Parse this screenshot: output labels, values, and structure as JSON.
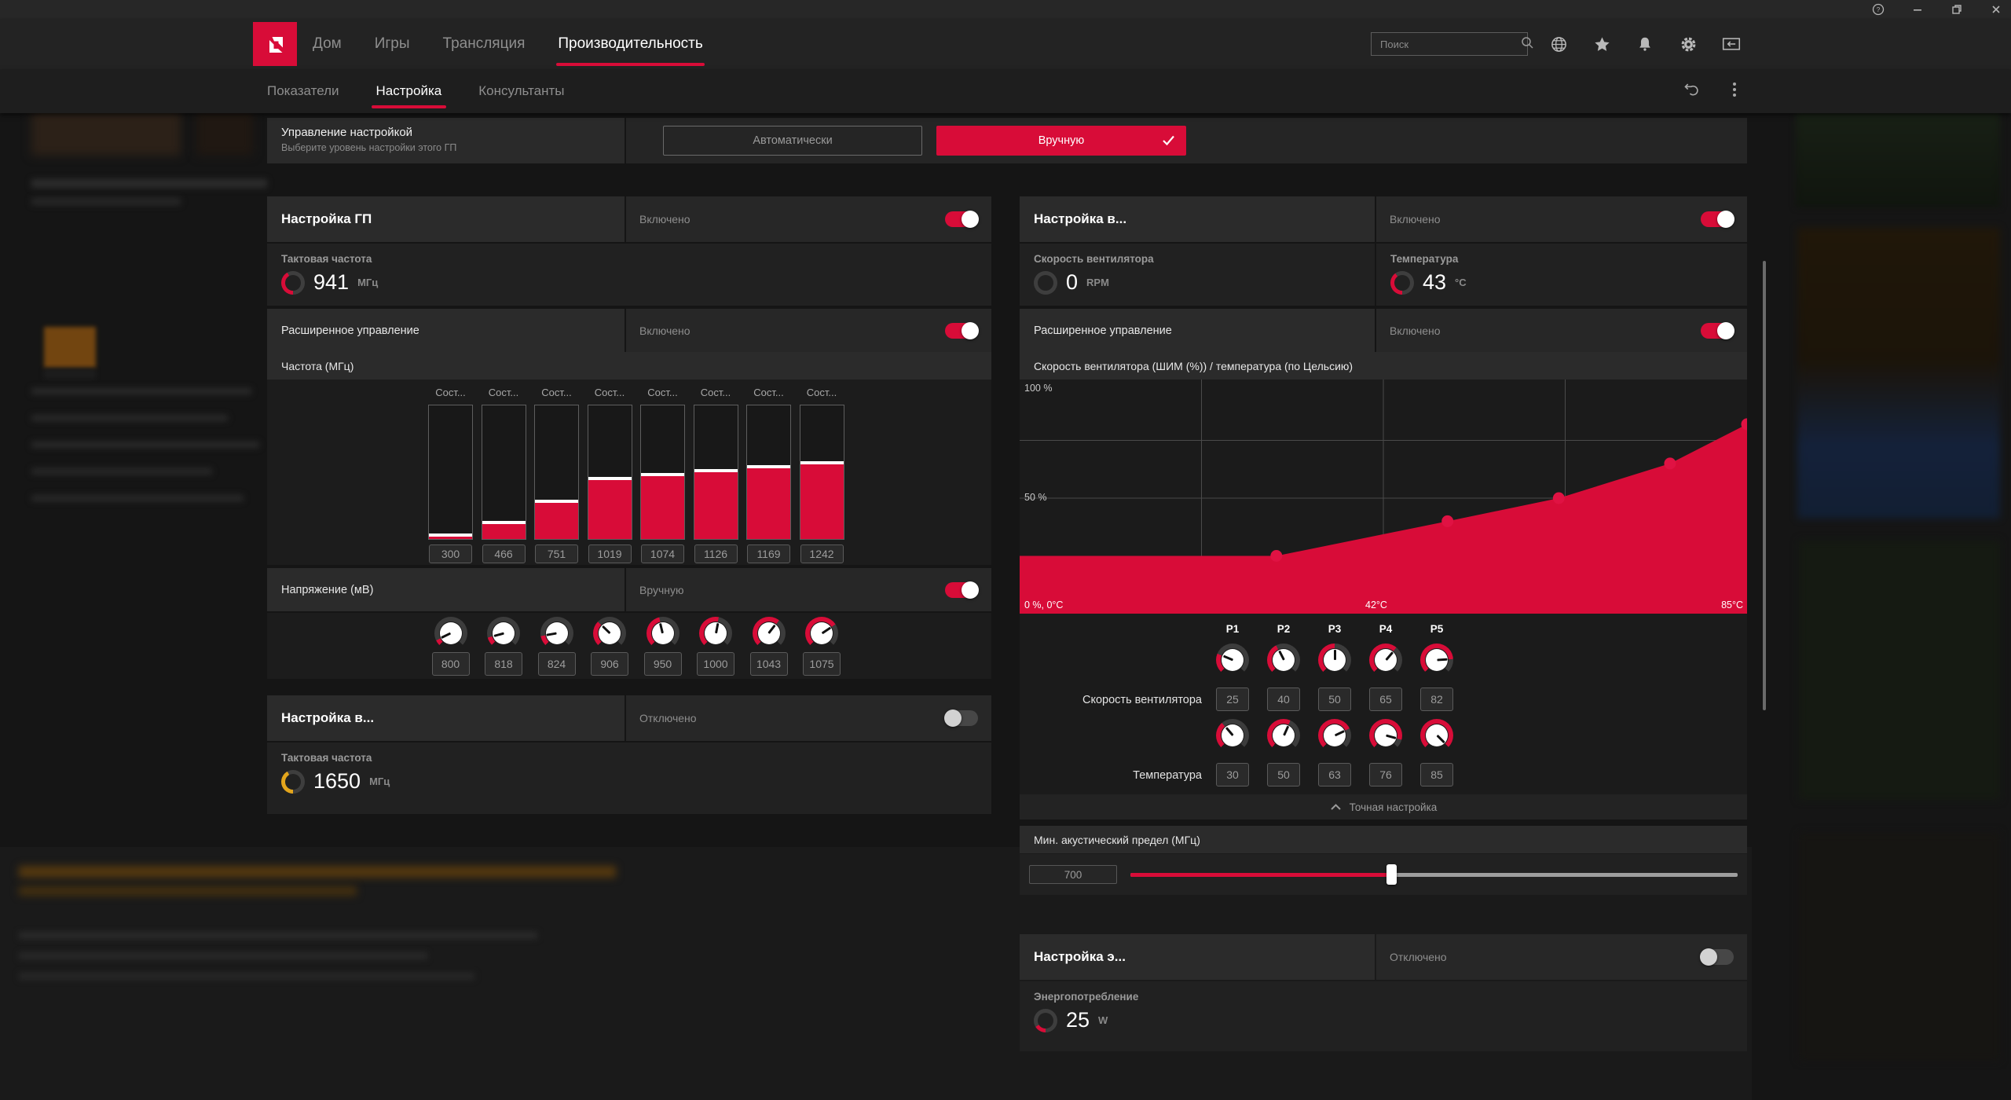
{
  "accent": "#d80c38",
  "window": {
    "icons": [
      "help-icon",
      "minimize-icon",
      "restore-icon",
      "close-icon"
    ]
  },
  "navbar": {
    "tabs": [
      {
        "label": "Дом",
        "active": false
      },
      {
        "label": "Игры",
        "active": false
      },
      {
        "label": "Трансляция",
        "active": false
      },
      {
        "label": "Производительность",
        "active": true
      }
    ],
    "search": {
      "placeholder": "Поиск"
    },
    "icons": [
      "globe-icon",
      "star-icon",
      "bell-icon",
      "gear-icon",
      "dock-left-icon"
    ]
  },
  "subnav": {
    "tabs": [
      {
        "label": "Показатели",
        "active": false
      },
      {
        "label": "Настройка",
        "active": true
      },
      {
        "label": "Консультанты",
        "active": false
      }
    ],
    "icons": [
      "undo-icon",
      "kebab-icon"
    ]
  },
  "control_row": {
    "title": "Управление настройкой",
    "subtitle": "Выберите уровень настройки этого ГП",
    "auto_label": "Автоматически",
    "manual_label": "Вручную"
  },
  "gpu": {
    "title": "Настройка ГП",
    "status": "Включено",
    "toggle_on": true,
    "clock": {
      "label": "Тактовая частота",
      "value": "941",
      "unit": "МГц",
      "gauge": {
        "pct": 0.42,
        "color": "#d80c38"
      }
    },
    "advanced": {
      "label": "Расширенное управление",
      "status": "Включено",
      "toggle_on": true
    },
    "freq_band": "Частота (МГц)",
    "state_label": "Сост...",
    "states": [
      {
        "value": "300",
        "fill": 2
      },
      {
        "value": "466",
        "fill": 11
      },
      {
        "value": "751",
        "fill": 27
      },
      {
        "value": "1019",
        "fill": 44
      },
      {
        "value": "1074",
        "fill": 47
      },
      {
        "value": "1126",
        "fill": 50
      },
      {
        "value": "1169",
        "fill": 53
      },
      {
        "value": "1242",
        "fill": 56
      }
    ],
    "voltage": {
      "label": "Напряжение (мВ)",
      "status": "Вручную",
      "toggle_on": true,
      "knobs": [
        {
          "value": "800",
          "pct": 7
        },
        {
          "value": "818",
          "pct": 11
        },
        {
          "value": "824",
          "pct": 13
        },
        {
          "value": "906",
          "pct": 33
        },
        {
          "value": "950",
          "pct": 45
        },
        {
          "value": "1000",
          "pct": 54
        },
        {
          "value": "1043",
          "pct": 64
        },
        {
          "value": "1075",
          "pct": 71
        }
      ]
    }
  },
  "vram": {
    "title": "Настройка в...",
    "status": "Отключено",
    "toggle_on": false,
    "clock": {
      "label": "Тактовая частота",
      "value": "1650",
      "unit": "МГц",
      "gauge": {
        "pct": 0.42,
        "color": "#e3a51c"
      }
    }
  },
  "fan": {
    "title": "Настройка в...",
    "status": "Включено",
    "toggle_on": true,
    "speed": {
      "label": "Скорость вентилятора",
      "value": "0",
      "unit": "RPM",
      "gauge": {
        "pct": 0,
        "color": "#d80c38"
      }
    },
    "temp": {
      "label": "Температура",
      "value": "43",
      "unit": "°C",
      "gauge": {
        "pct": 0.4,
        "color": "#d80c38"
      }
    },
    "advanced": {
      "label": "Расширенное управление",
      "status": "Включено",
      "toggle_on": true
    },
    "chart": {
      "title": "Скорость вентилятора (ШИМ (%)) / температура (по Цельсию)",
      "y_max_label": "100 %",
      "y_mid_label": "50 %",
      "origin_label": "0 %, 0°C",
      "x_mid_label": "42°C",
      "x_max_label": "85°C",
      "x_range": [
        0,
        85
      ],
      "y_range": [
        0,
        100
      ],
      "points": [
        {
          "name": "P1",
          "temp": 30,
          "speed": 25
        },
        {
          "name": "P2",
          "temp": 50,
          "speed": 40
        },
        {
          "name": "P3",
          "temp": 63,
          "speed": 50
        },
        {
          "name": "P4",
          "temp": 76,
          "speed": 65
        },
        {
          "name": "P5",
          "temp": 85,
          "speed": 82
        }
      ]
    },
    "grid": {
      "col_headers": [
        "P1",
        "P2",
        "P3",
        "P4",
        "P5"
      ],
      "speed_row": {
        "label": "Скорость вентилятора",
        "values": [
          "25",
          "40",
          "50",
          "65",
          "82"
        ],
        "pcts": [
          25,
          40,
          50,
          65,
          82
        ]
      },
      "temp_row": {
        "label": "Температура",
        "values": [
          "30",
          "50",
          "63",
          "76",
          "85"
        ],
        "pcts": [
          35,
          59,
          74,
          89,
          100
        ]
      }
    },
    "fine_tuning": "Точная настройка",
    "acoustic": {
      "label": "Мин. акустический предел (МГц)",
      "value": "700",
      "slider_pct": 43
    }
  },
  "power": {
    "title": "Настройка э...",
    "status": "Отключено",
    "toggle_on": false,
    "metric": {
      "label": "Энергопотребление",
      "value": "25",
      "unit": "W",
      "gauge": {
        "pct": 0.16,
        "color": "#d80c38"
      }
    }
  },
  "chart_data": [
    {
      "type": "bar",
      "title": "Частота (МГц)",
      "categories": [
        "Сост...",
        "Сост...",
        "Сост...",
        "Сост...",
        "Сост...",
        "Сост...",
        "Сост...",
        "Сост..."
      ],
      "values": [
        300,
        466,
        751,
        1019,
        1074,
        1126,
        1169,
        1242
      ],
      "ylabel": "МГц"
    },
    {
      "type": "area",
      "title": "Скорость вентилятора (ШИМ (%)) / температура (по Цельсию)",
      "x": [
        30,
        50,
        63,
        76,
        85
      ],
      "y": [
        25,
        40,
        50,
        65,
        82
      ],
      "xlabel": "Температура (°C)",
      "ylabel": "ШИМ (%)",
      "xlim": [
        0,
        85
      ],
      "ylim": [
        0,
        100
      ],
      "annotations": [
        "P1",
        "P2",
        "P3",
        "P4",
        "P5"
      ]
    }
  ]
}
